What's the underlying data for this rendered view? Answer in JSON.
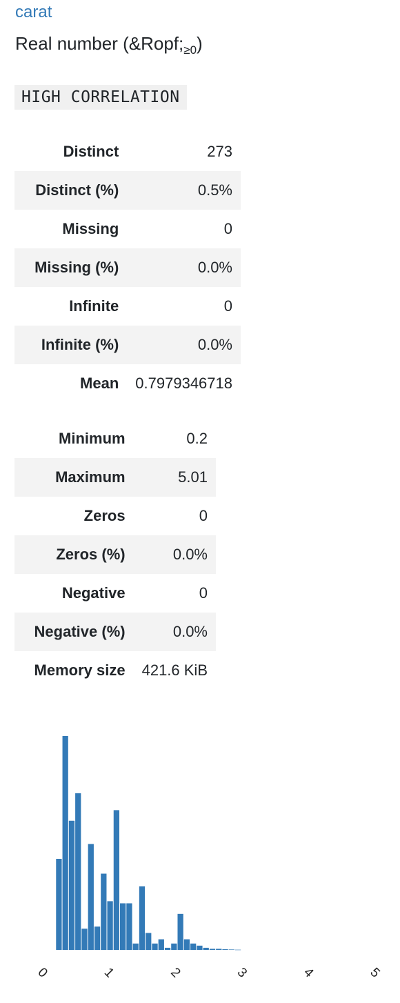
{
  "variable": {
    "name": "carat",
    "type": "Real number (&Ropf;",
    "type_subscript": "≥0",
    "type_close": ")"
  },
  "alerts": [
    "HIGH CORRELATION"
  ],
  "stats_table_1": [
    {
      "label": "Distinct",
      "value": "273"
    },
    {
      "label": "Distinct (%)",
      "value": "0.5%"
    },
    {
      "label": "Missing",
      "value": "0"
    },
    {
      "label": "Missing (%)",
      "value": "0.0%"
    },
    {
      "label": "Infinite",
      "value": "0"
    },
    {
      "label": "Infinite (%)",
      "value": "0.0%"
    },
    {
      "label": "Mean",
      "value": "0.7979346718"
    }
  ],
  "stats_table_2": [
    {
      "label": "Minimum",
      "value": "0.2"
    },
    {
      "label": "Maximum",
      "value": "5.01"
    },
    {
      "label": "Zeros",
      "value": "0"
    },
    {
      "label": "Zeros (%)",
      "value": "0.0%"
    },
    {
      "label": "Negative",
      "value": "0"
    },
    {
      "label": "Negative (%)",
      "value": "0.0%"
    },
    {
      "label": "Memory size",
      "value": "421.6 KiB"
    }
  ],
  "colors": {
    "link": "#337ab7",
    "bar": "#337ab7",
    "row_shade": "#f3f3f3",
    "badge_bg": "#f0f0f0"
  },
  "chart_data": {
    "type": "bar",
    "title": "",
    "xlabel": "",
    "ylabel": "",
    "xlim": [
      0,
      5
    ],
    "tick_labels": [
      "0",
      "1",
      "2",
      "3",
      "4",
      "5"
    ],
    "bin_width": 0.0962,
    "bin_starts": [
      0.2,
      0.2962,
      0.3924,
      0.4886,
      0.5848,
      0.681,
      0.7772,
      0.8734,
      0.9696,
      1.0658,
      1.162,
      1.2582,
      1.3544,
      1.4506,
      1.5468,
      1.643,
      1.7392,
      1.8354,
      1.9316,
      2.0278,
      2.124,
      2.2202,
      2.3164,
      2.4126,
      2.5088,
      2.605,
      2.7012,
      2.7974,
      2.8936
    ],
    "values": [
      4300,
      10100,
      6100,
      7400,
      1000,
      5000,
      1100,
      3600,
      2300,
      6600,
      2200,
      2200,
      300,
      3000,
      800,
      300,
      500,
      100,
      300,
      1700,
      500,
      300,
      200,
      100,
      50,
      50,
      30,
      20,
      10
    ],
    "grid": false,
    "legend": "none"
  }
}
